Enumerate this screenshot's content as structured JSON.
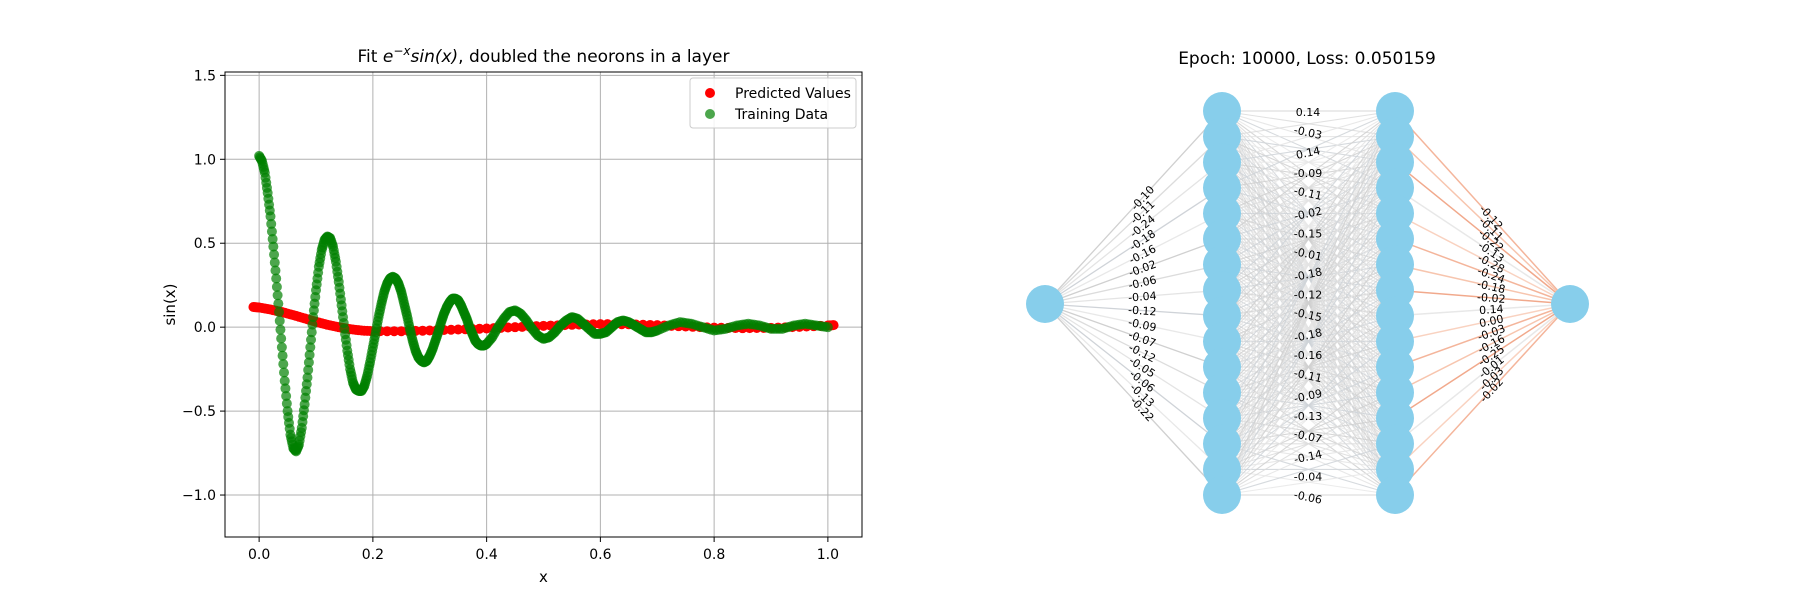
{
  "chart_data": [
    {
      "type": "scatter",
      "title_prefix": "Fit ",
      "title_base": "e",
      "title_sup": "−x",
      "title_func": "sin(x)",
      "title_suffix": ", doubled the neorons in a layer",
      "xlabel": "x",
      "ylabel": "sin(x)",
      "xlim": [
        -0.06,
        1.06
      ],
      "ylim": [
        -1.25,
        1.52
      ],
      "xticks": [
        0.0,
        0.2,
        0.4,
        0.6,
        0.8,
        1.0
      ],
      "xtick_labels": [
        "0.0",
        "0.2",
        "0.4",
        "0.6",
        "0.8",
        "1.0"
      ],
      "yticks": [
        -1.0,
        -0.5,
        0.0,
        0.5,
        1.0,
        1.5
      ],
      "ytick_labels": [
        "−1.0",
        "−0.5",
        "0.0",
        "0.5",
        "1.0",
        "1.5"
      ],
      "grid": true,
      "legend_position": "top-right",
      "series": [
        {
          "name": "Predicted Values",
          "color": "#ff0000",
          "points": [
            [
              -0.01,
              0.12
            ],
            [
              0.0,
              0.117
            ],
            [
              0.02,
              0.105
            ],
            [
              0.04,
              0.09
            ],
            [
              0.06,
              0.072
            ],
            [
              0.08,
              0.052
            ],
            [
              0.1,
              0.032
            ],
            [
              0.12,
              0.014
            ],
            [
              0.14,
              0.0
            ],
            [
              0.16,
              -0.012
            ],
            [
              0.18,
              -0.02
            ],
            [
              0.2,
              -0.024
            ],
            [
              0.25,
              -0.024
            ],
            [
              0.3,
              -0.02
            ],
            [
              0.35,
              -0.014
            ],
            [
              0.4,
              -0.008
            ],
            [
              0.45,
              0.0
            ],
            [
              0.5,
              0.008
            ],
            [
              0.55,
              0.014
            ],
            [
              0.6,
              0.018
            ],
            [
              0.65,
              0.017
            ],
            [
              0.7,
              0.012
            ],
            [
              0.75,
              0.004
            ],
            [
              0.8,
              -0.003
            ],
            [
              0.85,
              -0.006
            ],
            [
              0.9,
              -0.004
            ],
            [
              0.95,
              0.002
            ],
            [
              1.0,
              0.01
            ],
            [
              1.01,
              0.012
            ]
          ]
        },
        {
          "name": "Training Data",
          "color": "#008000",
          "points": [
            [
              0.0,
              1.02
            ],
            [
              0.005,
              0.99
            ],
            [
              0.01,
              0.92
            ],
            [
              0.015,
              0.8
            ],
            [
              0.02,
              0.66
            ],
            [
              0.025,
              0.48
            ],
            [
              0.03,
              0.29
            ],
            [
              0.035,
              0.09
            ],
            [
              0.04,
              -0.12
            ],
            [
              0.045,
              -0.32
            ],
            [
              0.05,
              -0.5
            ],
            [
              0.055,
              -0.64
            ],
            [
              0.06,
              -0.72
            ],
            [
              0.065,
              -0.74
            ],
            [
              0.07,
              -0.7
            ],
            [
              0.075,
              -0.6
            ],
            [
              0.08,
              -0.46
            ],
            [
              0.085,
              -0.3
            ],
            [
              0.09,
              -0.12
            ],
            [
              0.095,
              0.06
            ],
            [
              0.1,
              0.22
            ],
            [
              0.105,
              0.36
            ],
            [
              0.11,
              0.46
            ],
            [
              0.115,
              0.52
            ],
            [
              0.12,
              0.54
            ],
            [
              0.125,
              0.53
            ],
            [
              0.13,
              0.48
            ],
            [
              0.135,
              0.39
            ],
            [
              0.14,
              0.27
            ],
            [
              0.145,
              0.13
            ],
            [
              0.15,
              -0.01
            ],
            [
              0.155,
              -0.14
            ],
            [
              0.16,
              -0.25
            ],
            [
              0.165,
              -0.33
            ],
            [
              0.17,
              -0.37
            ],
            [
              0.175,
              -0.38
            ],
            [
              0.18,
              -0.38
            ],
            [
              0.185,
              -0.35
            ],
            [
              0.19,
              -0.29
            ],
            [
              0.195,
              -0.21
            ],
            [
              0.2,
              -0.12
            ],
            [
              0.205,
              -0.03
            ],
            [
              0.21,
              0.06
            ],
            [
              0.215,
              0.14
            ],
            [
              0.22,
              0.21
            ],
            [
              0.225,
              0.26
            ],
            [
              0.23,
              0.29
            ],
            [
              0.235,
              0.3
            ],
            [
              0.24,
              0.29
            ],
            [
              0.245,
              0.26
            ],
            [
              0.25,
              0.21
            ],
            [
              0.255,
              0.14
            ],
            [
              0.26,
              0.07
            ],
            [
              0.265,
              -0.01
            ],
            [
              0.27,
              -0.08
            ],
            [
              0.275,
              -0.14
            ],
            [
              0.28,
              -0.18
            ],
            [
              0.285,
              -0.2
            ],
            [
              0.29,
              -0.21
            ],
            [
              0.295,
              -0.2
            ],
            [
              0.3,
              -0.17
            ],
            [
              0.305,
              -0.13
            ],
            [
              0.31,
              -0.08
            ],
            [
              0.315,
              -0.03
            ],
            [
              0.32,
              0.03
            ],
            [
              0.325,
              0.08
            ],
            [
              0.33,
              0.12
            ],
            [
              0.335,
              0.15
            ],
            [
              0.34,
              0.17
            ],
            [
              0.345,
              0.17
            ],
            [
              0.35,
              0.16
            ],
            [
              0.355,
              0.13
            ],
            [
              0.36,
              0.09
            ],
            [
              0.365,
              0.05
            ],
            [
              0.37,
              0.0
            ],
            [
              0.375,
              -0.04
            ],
            [
              0.38,
              -0.08
            ],
            [
              0.385,
              -0.1
            ],
            [
              0.39,
              -0.11
            ],
            [
              0.395,
              -0.11
            ],
            [
              0.4,
              -0.1
            ],
            [
              0.41,
              -0.06
            ],
            [
              0.42,
              0.0
            ],
            [
              0.43,
              0.05
            ],
            [
              0.44,
              0.09
            ],
            [
              0.45,
              0.1
            ],
            [
              0.46,
              0.08
            ],
            [
              0.47,
              0.04
            ],
            [
              0.48,
              -0.01
            ],
            [
              0.49,
              -0.05
            ],
            [
              0.5,
              -0.07
            ],
            [
              0.51,
              -0.06
            ],
            [
              0.52,
              -0.03
            ],
            [
              0.53,
              0.01
            ],
            [
              0.54,
              0.04
            ],
            [
              0.55,
              0.06
            ],
            [
              0.56,
              0.05
            ],
            [
              0.57,
              0.02
            ],
            [
              0.58,
              -0.01
            ],
            [
              0.59,
              -0.04
            ],
            [
              0.6,
              -0.04
            ],
            [
              0.61,
              -0.03
            ],
            [
              0.62,
              0.0
            ],
            [
              0.63,
              0.03
            ],
            [
              0.64,
              0.04
            ],
            [
              0.65,
              0.03
            ],
            [
              0.66,
              0.01
            ],
            [
              0.67,
              -0.01
            ],
            [
              0.68,
              -0.03
            ],
            [
              0.69,
              -0.03
            ],
            [
              0.7,
              -0.02
            ],
            [
              0.72,
              0.01
            ],
            [
              0.74,
              0.03
            ],
            [
              0.76,
              0.02
            ],
            [
              0.78,
              0.0
            ],
            [
              0.8,
              -0.02
            ],
            [
              0.82,
              -0.01
            ],
            [
              0.84,
              0.01
            ],
            [
              0.86,
              0.02
            ],
            [
              0.88,
              0.01
            ],
            [
              0.9,
              -0.01
            ],
            [
              0.92,
              -0.01
            ],
            [
              0.94,
              0.01
            ],
            [
              0.96,
              0.02
            ],
            [
              0.98,
              0.01
            ],
            [
              1.0,
              0.0
            ]
          ]
        }
      ]
    },
    {
      "type": "network-diagram",
      "title": "Epoch: 10000, Loss: 0.050159",
      "node_color": "#87ceeb",
      "layers": [
        1,
        16,
        16,
        1
      ],
      "layer1_weight_labels": [
        "-0.10",
        "-0.11",
        "-0.24",
        "-0.18",
        "-0.16",
        "-0.02",
        "-0.06",
        "-0.04",
        "-0.12",
        "-0.09",
        "-0.07",
        "-0.12",
        "-0.05",
        "-0.06",
        "-0.13",
        "-0.22"
      ],
      "layer2_weight_labels": [
        "0.14",
        "-0.03",
        "0.14",
        "-0.09",
        "-0.11",
        "-0.02",
        "-0.15",
        "-0.01",
        "-0.18",
        "-0.12",
        "-0.15",
        "-0.18",
        "-0.16",
        "-0.11",
        "-0.09",
        "-0.13",
        "-0.07",
        "-0.14",
        "-0.04",
        "-0.06"
      ],
      "layer3_weight_labels": [
        "-0.12",
        "-0.11",
        "-0.22",
        "-0.13",
        "-0.28",
        "-0.24",
        "-0.18",
        "-0.02",
        "0.14",
        "0.00",
        "-0.03",
        "-0.16",
        "-0.25",
        "-0.01",
        "-0.03",
        "-0.02"
      ]
    }
  ]
}
